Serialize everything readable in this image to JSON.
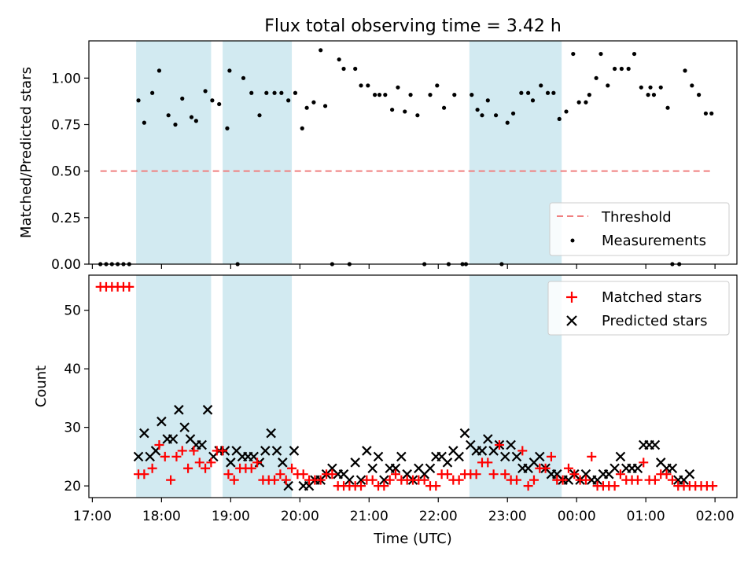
{
  "title": "Flux total observing time = 3.42 h",
  "colors": {
    "shade": "#add8e6",
    "threshold": "#f08080",
    "matched": "#ff0000",
    "predicted": "#000000",
    "measurement": "#000000"
  },
  "chart_data": [
    {
      "type": "scatter",
      "ylabel": "Matched/Predicted stars",
      "ylim": [
        0,
        1.2
      ],
      "yticks": [
        0.0,
        0.25,
        0.5,
        0.75,
        1.0
      ],
      "ytick_labels": [
        "0.00",
        "0.25",
        "0.50",
        "0.75",
        "1.00"
      ],
      "legend_position": "lower-right",
      "legend": [
        "Threshold",
        "Measurements"
      ],
      "threshold": {
        "name": "Threshold",
        "y": 0.5,
        "x_start": "17:07",
        "x_end": "01:56"
      },
      "shaded_intervals": [
        [
          "17:38",
          "18:43"
        ],
        [
          "18:53",
          "19:53"
        ],
        [
          "22:27",
          "23:47"
        ]
      ],
      "series": [
        {
          "name": "Measurements",
          "x": [
            "17:07",
            "17:12",
            "17:17",
            "17:22",
            "17:27",
            "17:32",
            "17:40",
            "17:45",
            "17:52",
            "17:58",
            "18:06",
            "18:12",
            "18:18",
            "18:26",
            "18:30",
            "18:38",
            "18:44",
            "18:50",
            "18:57",
            "18:59",
            "19:06",
            "19:11",
            "19:18",
            "19:25",
            "19:31",
            "19:38",
            "19:44",
            "19:50",
            "19:56",
            "20:02",
            "20:06",
            "20:12",
            "20:18",
            "20:22",
            "20:28",
            "20:34",
            "20:38",
            "20:43",
            "20:48",
            "20:53",
            "20:59",
            "21:05",
            "21:09",
            "21:14",
            "21:20",
            "21:25",
            "21:31",
            "21:36",
            "21:42",
            "21:48",
            "21:53",
            "21:59",
            "22:05",
            "22:09",
            "22:14",
            "22:21",
            "22:24",
            "22:29",
            "22:34",
            "22:38",
            "22:43",
            "22:50",
            "22:55",
            "23:00",
            "23:05",
            "23:12",
            "23:18",
            "23:22",
            "23:29",
            "23:35",
            "23:40",
            "23:45",
            "23:51",
            "23:57",
            "24:02",
            "24:08",
            "24:11",
            "24:17",
            "24:21",
            "24:27",
            "24:33",
            "24:39",
            "24:45",
            "24:50",
            "24:56",
            "25:02",
            "25:04",
            "25:07",
            "25:13",
            "25:19",
            "25:23",
            "25:29",
            "25:34",
            "25:40",
            "25:46",
            "25:52",
            "25:57"
          ],
          "y": [
            0,
            0,
            0,
            0,
            0,
            0,
            0.88,
            0.76,
            0.92,
            1.04,
            0.8,
            0.75,
            0.89,
            0.79,
            0.77,
            0.93,
            0.88,
            0.86,
            0.73,
            1.04,
            0,
            1.0,
            0.92,
            0.8,
            0.92,
            0.92,
            0.92,
            0.88,
            0.92,
            0.73,
            0.84,
            0.87,
            1.15,
            0.85,
            0,
            1.1,
            1.05,
            0,
            1.05,
            0.96,
            0.96,
            0.91,
            0.91,
            0.91,
            0.83,
            0.95,
            0.82,
            0.91,
            0.8,
            0,
            0.91,
            0.96,
            0.84,
            0,
            0.91,
            0,
            0,
            0.91,
            0.83,
            0.8,
            0.88,
            0.8,
            0,
            0.76,
            0.81,
            0.92,
            0.92,
            0.88,
            0.96,
            0.92,
            0.92,
            0.78,
            0.82,
            1.13,
            0.87,
            0.87,
            0.91,
            1.0,
            1.13,
            0.96,
            1.05,
            1.05,
            1.05,
            1.13,
            0.95,
            0.91,
            0.95,
            0.91,
            0.95,
            0.84,
            0,
            0,
            1.04,
            0.96,
            0.91,
            0.81,
            0.81
          ]
        }
      ]
    },
    {
      "type": "scatter",
      "xlabel": "Time (UTC)",
      "ylabel": "Count",
      "ylim": [
        18,
        56
      ],
      "yticks": [
        20,
        30,
        40,
        50
      ],
      "xticks": [
        "17:00",
        "18:00",
        "19:00",
        "20:00",
        "21:00",
        "22:00",
        "23:00",
        "00:00",
        "01:00",
        "02:00"
      ],
      "legend_position": "top-right",
      "legend": [
        "Matched stars",
        "Predicted stars"
      ],
      "shaded_intervals": [
        [
          "17:38",
          "18:43"
        ],
        [
          "18:53",
          "19:53"
        ],
        [
          "22:27",
          "23:47"
        ]
      ],
      "series": [
        {
          "name": "Matched stars",
          "marker": "plus",
          "x": [
            "17:07",
            "17:12",
            "17:17",
            "17:22",
            "17:27",
            "17:32",
            "17:40",
            "17:45",
            "17:52",
            "17:58",
            "18:03",
            "18:08",
            "18:13",
            "18:18",
            "18:23",
            "18:28",
            "18:33",
            "18:38",
            "18:43",
            "18:48",
            "18:53",
            "18:58",
            "19:03",
            "19:08",
            "19:13",
            "19:18",
            "19:23",
            "19:28",
            "19:33",
            "19:38",
            "19:43",
            "19:48",
            "19:53",
            "19:58",
            "20:03",
            "20:08",
            "20:13",
            "20:18",
            "20:23",
            "20:28",
            "20:33",
            "20:38",
            "20:43",
            "20:48",
            "20:53",
            "20:58",
            "21:03",
            "21:08",
            "21:13",
            "21:18",
            "21:23",
            "21:28",
            "21:33",
            "21:38",
            "21:43",
            "21:48",
            "21:53",
            "21:58",
            "22:03",
            "22:08",
            "22:13",
            "22:18",
            "22:23",
            "22:28",
            "22:33",
            "22:38",
            "22:43",
            "22:48",
            "22:53",
            "22:58",
            "23:03",
            "23:08",
            "23:13",
            "23:18",
            "23:23",
            "23:28",
            "23:33",
            "23:38",
            "23:43",
            "23:48",
            "23:53",
            "23:58",
            "24:03",
            "24:08",
            "24:13",
            "24:18",
            "24:23",
            "24:28",
            "24:33",
            "24:38",
            "24:43",
            "24:48",
            "24:53",
            "24:58",
            "25:03",
            "25:08",
            "25:13",
            "25:18",
            "25:23",
            "25:28",
            "25:33",
            "25:38",
            "25:43",
            "25:48",
            "25:53",
            "25:58"
          ],
          "y": [
            54,
            54,
            54,
            54,
            54,
            54,
            22,
            22,
            23,
            27,
            25,
            21,
            25,
            26,
            23,
            26,
            24,
            23,
            24,
            26,
            26,
            22,
            21,
            23,
            23,
            23,
            24,
            21,
            21,
            21,
            22,
            21,
            23,
            22,
            22,
            21,
            21,
            21,
            22,
            22,
            20,
            20,
            20,
            20,
            20,
            21,
            21,
            20,
            20,
            21,
            22,
            21,
            21,
            21,
            21,
            21,
            20,
            20,
            22,
            22,
            21,
            21,
            22,
            22,
            22,
            24,
            24,
            22,
            27,
            22,
            21,
            21,
            26,
            20,
            21,
            23,
            23,
            25,
            21,
            21,
            23,
            22,
            21,
            21,
            25,
            20,
            20,
            20,
            20,
            22,
            21,
            21,
            21,
            24,
            21,
            21,
            22,
            22,
            21,
            20,
            20,
            20,
            20,
            20,
            20,
            20
          ]
        },
        {
          "name": "Predicted stars",
          "marker": "x",
          "x": [
            "17:40",
            "17:45",
            "17:50",
            "17:55",
            "18:00",
            "18:05",
            "18:10",
            "18:15",
            "18:20",
            "18:25",
            "18:30",
            "18:35",
            "18:40",
            "18:45",
            "18:50",
            "18:55",
            "19:00",
            "19:05",
            "19:10",
            "19:15",
            "19:20",
            "19:25",
            "19:30",
            "19:35",
            "19:40",
            "19:45",
            "19:50",
            "19:55",
            "20:03",
            "20:08",
            "20:13",
            "20:18",
            "20:23",
            "20:28",
            "20:33",
            "20:38",
            "20:43",
            "20:48",
            "20:53",
            "20:58",
            "21:03",
            "21:08",
            "21:13",
            "21:18",
            "21:23",
            "21:28",
            "21:33",
            "21:38",
            "21:43",
            "21:48",
            "21:53",
            "21:58",
            "22:03",
            "22:08",
            "22:13",
            "22:18",
            "22:23",
            "22:28",
            "22:33",
            "22:38",
            "22:43",
            "22:48",
            "22:53",
            "22:58",
            "23:03",
            "23:08",
            "23:13",
            "23:18",
            "23:23",
            "23:28",
            "23:33",
            "23:38",
            "23:43",
            "23:48",
            "23:53",
            "23:58",
            "24:03",
            "24:08",
            "24:13",
            "24:18",
            "24:23",
            "24:28",
            "24:33",
            "24:38",
            "24:43",
            "24:48",
            "24:53",
            "24:58",
            "25:03",
            "25:08",
            "25:13",
            "25:18",
            "25:23",
            "25:28",
            "25:33",
            "25:38"
          ],
          "y": [
            25,
            29,
            25,
            26,
            31,
            28,
            28,
            33,
            30,
            28,
            27,
            27,
            33,
            25,
            26,
            26,
            24,
            26,
            25,
            25,
            25,
            24,
            26,
            29,
            26,
            24,
            20,
            26,
            20,
            20,
            21,
            21,
            22,
            23,
            22,
            22,
            21,
            24,
            21,
            26,
            23,
            25,
            21,
            23,
            23,
            25,
            22,
            21,
            23,
            22,
            23,
            25,
            25,
            24,
            26,
            25,
            29,
            27,
            26,
            26,
            28,
            26,
            27,
            25,
            27,
            25,
            23,
            23,
            24,
            25,
            23,
            22,
            22,
            21,
            21,
            22,
            21,
            22,
            21,
            21,
            22,
            22,
            23,
            25,
            23,
            23,
            23,
            27,
            27,
            27,
            24,
            23,
            23,
            21,
            21,
            22
          ]
        }
      ]
    }
  ]
}
